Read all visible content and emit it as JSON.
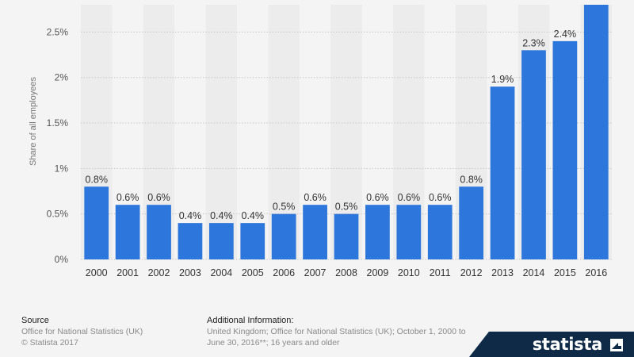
{
  "chart_data": {
    "type": "bar",
    "categories": [
      "2000",
      "2001",
      "2002",
      "2003",
      "2004",
      "2005",
      "2006",
      "2007",
      "2008",
      "2009",
      "2010",
      "2011",
      "2012",
      "2013",
      "2014",
      "2015",
      "2016"
    ],
    "values": [
      0.8,
      0.6,
      0.6,
      0.4,
      0.4,
      0.4,
      0.5,
      0.6,
      0.5,
      0.6,
      0.6,
      0.6,
      0.8,
      1.9,
      2.3,
      2.4,
      2.8
    ],
    "data_labels": [
      "0.8%",
      "0.6%",
      "0.6%",
      "0.4%",
      "0.4%",
      "0.4%",
      "0.5%",
      "0.6%",
      "0.5%",
      "0.6%",
      "0.6%",
      "0.6%",
      "0.8%",
      "1.9%",
      "2.3%",
      "2.4%",
      ""
    ],
    "title": "",
    "xlabel": "",
    "ylabel": "Share of all employees",
    "ylim": [
      0,
      2.8
    ],
    "yticks": [
      0,
      0.5,
      1,
      1.5,
      2,
      2.5
    ],
    "ytick_labels": [
      "0%",
      "0.5%",
      "1%",
      "1.5%",
      "2%",
      "2.5%"
    ],
    "grid": true,
    "bar_color": "#2d76db",
    "stripe_color": "#ececec"
  },
  "footer": {
    "source_title": "Source",
    "source_line1": "Office for National Statistics (UK)",
    "source_line2": "© Statista 2017",
    "info_title": "Additional Information:",
    "info_text": "United Kingdom; Office for National Statistics (UK); October 1, 2000 to June 30, 2016**; 16 years and older"
  },
  "brand": {
    "name": "statista",
    "bg_color": "#0f2a47"
  }
}
